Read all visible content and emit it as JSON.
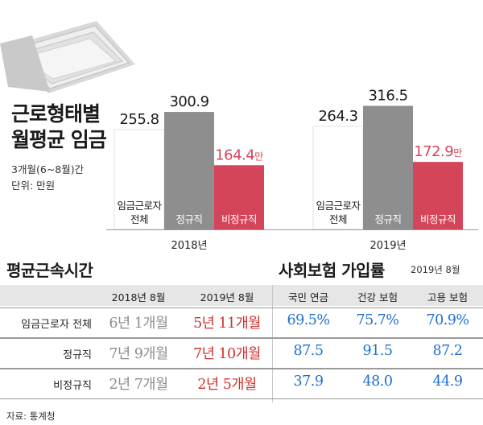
{
  "chart_data": {
    "type": "bar",
    "title": "근로형태별 월평균 임금",
    "notes": [
      "3개월(6~8월)간",
      "단위: 만원"
    ],
    "unit_suffix": "만",
    "groups": [
      "2018년",
      "2019년"
    ],
    "series": [
      {
        "name": "임금근로자 전체",
        "values": [
          255.8,
          264.3
        ],
        "color": "#ffffff"
      },
      {
        "name": "정규직",
        "values": [
          300.9,
          316.5
        ],
        "color": "#8e8e8e"
      },
      {
        "name": "비정규직",
        "values": [
          164.4,
          172.9
        ],
        "color": "#d4455a"
      }
    ],
    "series_labels": [
      [
        "임금근로자",
        "전체"
      ],
      [
        "정규직"
      ],
      [
        "비정규직"
      ]
    ],
    "ylim": [
      0,
      340
    ]
  },
  "tenure": {
    "title": "평균근속시간",
    "headers": [
      "2018년 8월",
      "2019년 8월"
    ]
  },
  "insurance": {
    "title": "사회보험 가입률",
    "subtitle": "2019년 8월",
    "headers": [
      "국민 연금",
      "건강 보험",
      "고용 보험"
    ]
  },
  "rows": [
    {
      "label": "임금근로자 전체",
      "t2018": "6년 1개월",
      "t2019": "5년 11개월",
      "pension": "69.5%",
      "health": "75.7%",
      "employment": "70.9%"
    },
    {
      "label": "정규직",
      "t2018": "7년 9개월",
      "t2019": "7년 10개월",
      "pension": "87.5",
      "health": "91.5",
      "employment": "87.2"
    },
    {
      "label": "비정규직",
      "t2018": "2년 7개월",
      "t2019": "2년 5개월",
      "pension": "37.9",
      "health": "48.0",
      "employment": "44.9"
    }
  ],
  "source": "자료: 통계청"
}
